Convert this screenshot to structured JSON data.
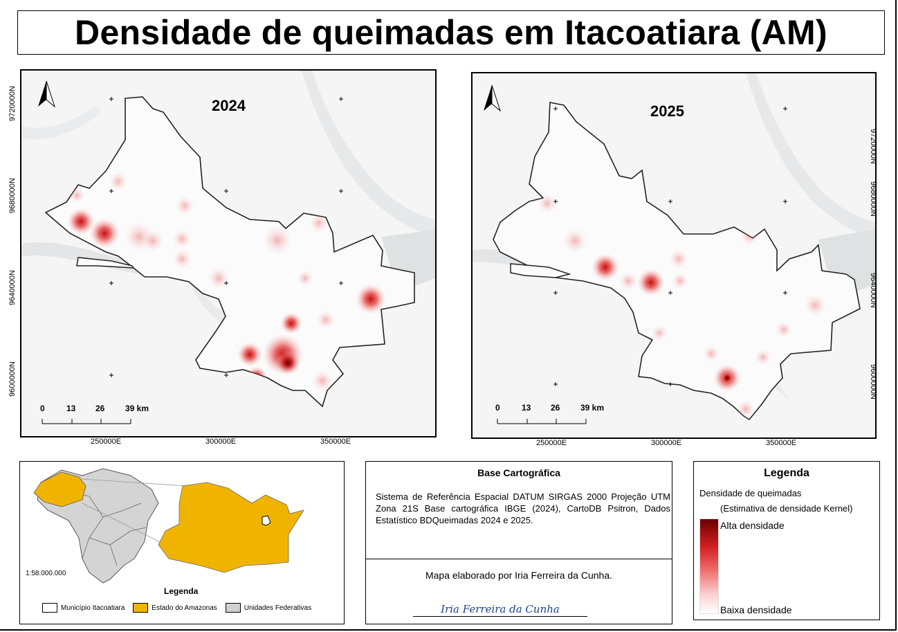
{
  "title": "Densidade de queimadas em Itacoatiara (AM)",
  "maps": [
    {
      "year": "2024"
    },
    {
      "year": "2025"
    }
  ],
  "axis": {
    "easting": [
      "250000E",
      "300000E",
      "350000E"
    ],
    "northing": [
      "9720000N",
      "9680000N",
      "9640000N",
      "9600000N"
    ]
  },
  "scale_bar": {
    "ticks": [
      "0",
      "13",
      "26",
      "39 km"
    ]
  },
  "inset": {
    "scale_text": "1:58.000.000",
    "legend_title": "Legenda",
    "items": [
      {
        "label": "Município Itacoatiara",
        "color": "#ffffff"
      },
      {
        "label": "Estado do Amazonas",
        "color": "#f0b400"
      },
      {
        "label": "Unidades Federativas",
        "color": "#d0d0d0"
      }
    ]
  },
  "base": {
    "title": "Base Cartográfica",
    "text": "Sistema de Referência Espacial DATUM SIRGAS 2000 Projeção UTM Zona 21S Base cartográfica IBGE (2024), CartoDB Psitron, Dados Estatístico BDQueimadas 2024 e 2025.",
    "author": "Mapa elaborado por Iria Ferreira da Cunha.",
    "signature": "Iria Ferreira da Cunha"
  },
  "legend": {
    "title": "Legenda",
    "subtitle": "Densidade de queimadas",
    "method": "(Estimativa de densidade Kernel)",
    "high": "Alta densidade",
    "low": "Baixa densidade",
    "ramp_colors": [
      "#6b0000",
      "#d42020",
      "#f07070",
      "#fbd0d0",
      "#ffffff"
    ]
  }
}
